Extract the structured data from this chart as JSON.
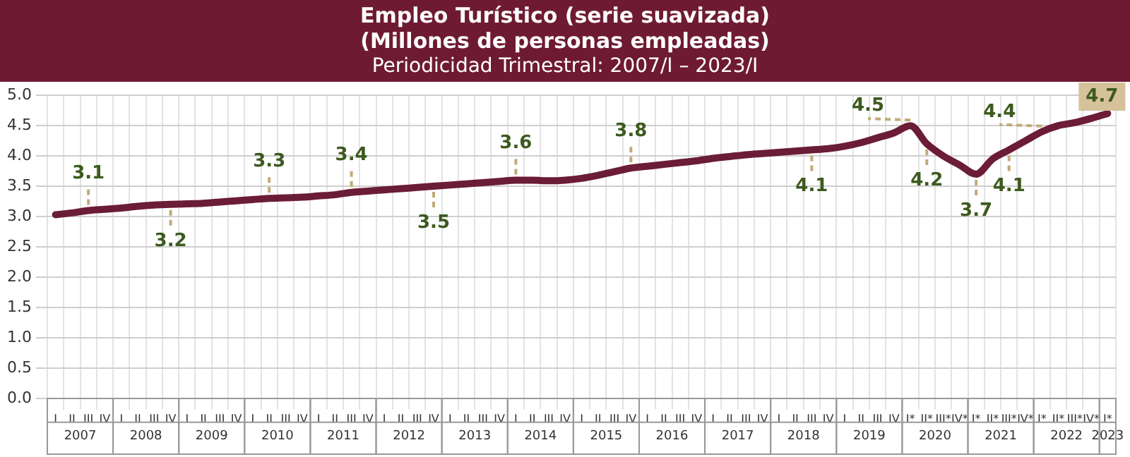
{
  "chart_data": {
    "type": "line",
    "title": "Empleo Turístico (serie suavizada)\n(Millones de personas empleadas)",
    "subtitle": "Periodicidad Trimestral: 2007/I – 2023/I",
    "categories": [
      "I",
      "II",
      "III",
      "IV",
      "I",
      "II",
      "III",
      "IV",
      "I",
      "II",
      "III",
      "IV",
      "I",
      "II",
      "III",
      "IV",
      "I",
      "II",
      "III",
      "IV",
      "I",
      "II",
      "III",
      "IV",
      "I",
      "II",
      "III",
      "IV",
      "I",
      "II",
      "III",
      "IV",
      "I",
      "II",
      "III",
      "IV",
      "I",
      "II",
      "III",
      "IV",
      "I",
      "II",
      "III",
      "IV",
      "I",
      "II",
      "III",
      "IV",
      "I",
      "II",
      "III",
      "IV",
      "I*",
      "II*",
      "III*",
      "IV*",
      "I*",
      "II*",
      "III*",
      "IV*",
      "I*",
      "II*",
      "III*",
      "IV*",
      "I*"
    ],
    "annotations": [
      "2007",
      "2008",
      "2009",
      "2010",
      "2011",
      "2012",
      "2013",
      "2014",
      "2015",
      "2016",
      "2017",
      "2018",
      "2019",
      "2020",
      "2021",
      "2022",
      "2023"
    ],
    "series": [
      {
        "color": "#6b1c36",
        "values": [
          3.03,
          3.06,
          3.1,
          3.12,
          3.14,
          3.17,
          3.19,
          3.2,
          3.21,
          3.22,
          3.24,
          3.26,
          3.28,
          3.3,
          3.31,
          3.32,
          3.34,
          3.36,
          3.4,
          3.42,
          3.44,
          3.46,
          3.48,
          3.5,
          3.52,
          3.54,
          3.56,
          3.58,
          3.6,
          3.6,
          3.59,
          3.6,
          3.63,
          3.68,
          3.74,
          3.8,
          3.83,
          3.86,
          3.89,
          3.92,
          3.96,
          3.99,
          4.02,
          4.04,
          4.06,
          4.08,
          4.1,
          4.12,
          4.16,
          4.22,
          4.3,
          4.38,
          4.5,
          4.2,
          4.0,
          3.85,
          3.7,
          3.95,
          4.1,
          4.25,
          4.4,
          4.5,
          4.55,
          4.62,
          4.7
        ],
        "value_labels": [
          null,
          null,
          "3.1",
          null,
          null,
          null,
          null,
          "3.2",
          null,
          null,
          null,
          null,
          null,
          "3.3",
          null,
          null,
          null,
          null,
          "3.4",
          null,
          null,
          null,
          null,
          "3.5",
          null,
          null,
          null,
          null,
          "3.6",
          null,
          null,
          null,
          null,
          null,
          null,
          "3.8",
          null,
          null,
          null,
          null,
          null,
          null,
          null,
          null,
          null,
          null,
          "4.1",
          null,
          null,
          null,
          null,
          null,
          "4.5",
          "4.2",
          null,
          null,
          "3.7",
          null,
          "4.1",
          null,
          "4.4",
          null,
          null,
          null,
          "4.7"
        ]
      }
    ],
    "ylim": [
      0,
      5
    ],
    "yticks": [
      {
        "value": 0,
        "label": "0.0"
      },
      {
        "value": 0.5,
        "label": "0.5"
      },
      {
        "value": 1,
        "label": "1.0"
      },
      {
        "value": 1.5,
        "label": "1.5"
      },
      {
        "value": 2,
        "label": "2.0"
      },
      {
        "value": 2.5,
        "label": "2.5"
      },
      {
        "value": 3,
        "label": "3.0"
      },
      {
        "value": 3.5,
        "label": "3.5"
      },
      {
        "value": 4,
        "label": "4.0"
      },
      {
        "value": 4.5,
        "label": "4.5"
      },
      {
        "value": 5,
        "label": "5.0"
      }
    ],
    "grid": true,
    "legend": false,
    "marker": "none",
    "line_style": "solid"
  }
}
